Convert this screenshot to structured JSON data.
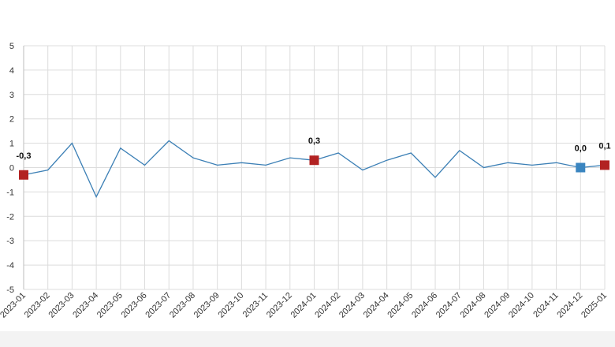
{
  "chart_data": {
    "type": "line",
    "title": "",
    "xlabel": "",
    "ylabel": "",
    "ylim": [
      -5,
      5
    ],
    "yticks": [
      5,
      4,
      3,
      2,
      1,
      0,
      -1,
      -2,
      -3,
      -4,
      -5
    ],
    "grid": true,
    "categories": [
      "2023-01",
      "2023-02",
      "2023-03",
      "2023-04",
      "2023-05",
      "2023-06",
      "2023-07",
      "2023-08",
      "2023-09",
      "2023-10",
      "2023-11",
      "2023-12",
      "2024-01",
      "2024-02",
      "2024-03",
      "2024-04",
      "2024-05",
      "2024-06",
      "2024-07",
      "2024-08",
      "2024-09",
      "2024-10",
      "2024-11",
      "2024-12",
      "2025-01"
    ],
    "series": [
      {
        "color": "#3b7fb5",
        "values": [
          -0.3,
          -0.1,
          1.0,
          -1.2,
          0.8,
          0.1,
          1.1,
          0.4,
          0.1,
          0.2,
          0.1,
          0.4,
          0.3,
          0.6,
          -0.1,
          0.3,
          0.6,
          -0.4,
          0.7,
          0.0,
          0.2,
          0.1,
          0.2,
          0.0,
          0.1
        ]
      }
    ],
    "highlights": [
      {
        "index": 0,
        "label": "-0,3",
        "color": "#b22222"
      },
      {
        "index": 12,
        "label": "0,3",
        "color": "#b22222"
      },
      {
        "index": 23,
        "label": "0,0",
        "color": "#3a85c0"
      },
      {
        "index": 24,
        "label": "0,1",
        "color": "#b22222"
      }
    ]
  }
}
